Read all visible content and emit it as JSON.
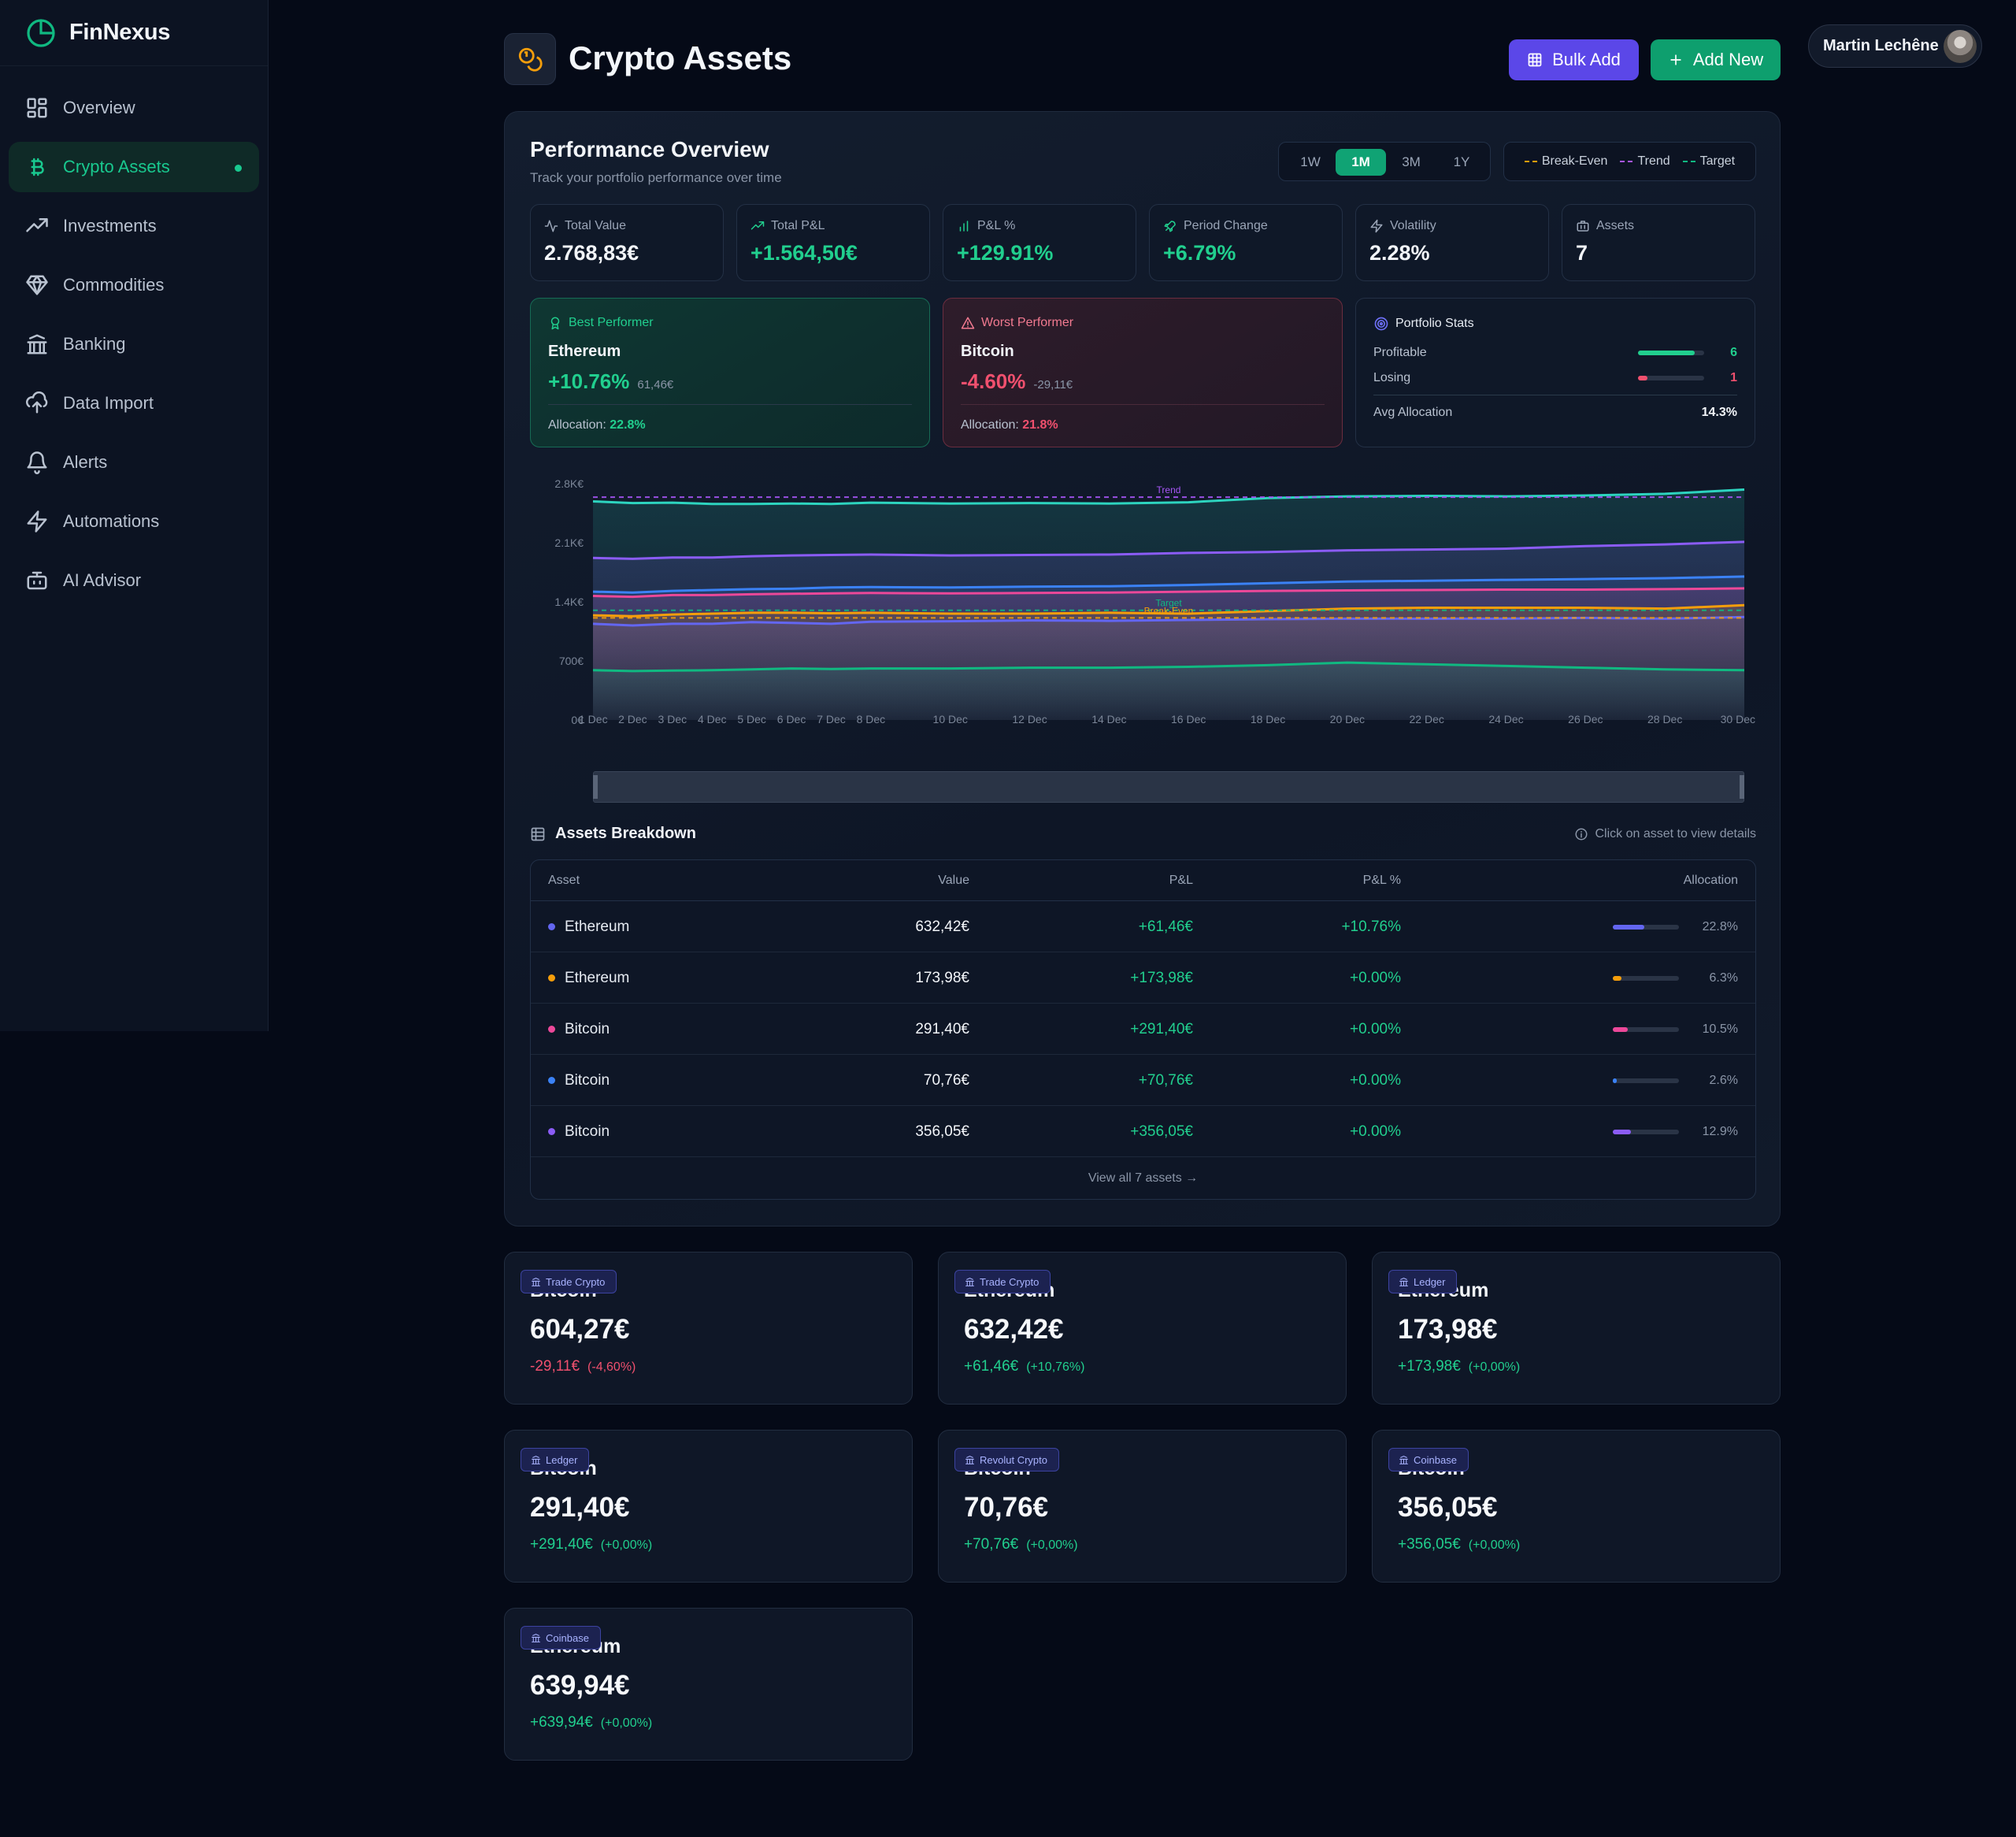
{
  "app": {
    "name": "FinNexus"
  },
  "sidebar": {
    "items": [
      {
        "label": "Overview",
        "icon": "layout-grid-icon"
      },
      {
        "label": "Crypto Assets",
        "icon": "bitcoin-icon",
        "active": true
      },
      {
        "label": "Investments",
        "icon": "trending-up-icon"
      },
      {
        "label": "Commodities",
        "icon": "gem-icon"
      },
      {
        "label": "Banking",
        "icon": "bank-icon"
      },
      {
        "label": "Data Import",
        "icon": "cloud-upload-icon"
      },
      {
        "label": "Alerts",
        "icon": "bell-icon"
      },
      {
        "label": "Automations",
        "icon": "zap-icon"
      },
      {
        "label": "AI Advisor",
        "icon": "bot-icon"
      }
    ]
  },
  "header": {
    "title": "Crypto Assets",
    "bulk_add_label": "Bulk Add",
    "add_new_label": "Add New",
    "user_name": "Martin Lechêne"
  },
  "colors": {
    "accent": "#10b981",
    "primary": "#5b47e8",
    "positive": "#21cf8e",
    "negative": "#f0506e"
  },
  "performance": {
    "title": "Performance Overview",
    "subtitle": "Track your portfolio performance over time",
    "ranges": [
      "1W",
      "1M",
      "3M",
      "1Y"
    ],
    "selected_range": "1M",
    "legend": [
      {
        "label": "Break-Even",
        "color": "#f59e0b"
      },
      {
        "label": "Trend",
        "color": "#a855f7"
      },
      {
        "label": "Target",
        "color": "#10b981"
      }
    ],
    "stats": [
      {
        "label": "Total Value",
        "value": "2.768,83€",
        "icon": "activity-icon"
      },
      {
        "label": "Total P&L",
        "value": "+1.564,50€",
        "icon": "trending-up-icon"
      },
      {
        "label": "P&L %",
        "value": "+129.91%",
        "icon": "bar-chart-icon"
      },
      {
        "label": "Period Change",
        "value": "+6.79%",
        "icon": "rocket-icon"
      },
      {
        "label": "Volatility",
        "value": "2.28%",
        "icon": "zap-icon"
      },
      {
        "label": "Assets",
        "value": "7",
        "icon": "briefcase-icon"
      }
    ],
    "best": {
      "label": "Best Performer",
      "asset": "Ethereum",
      "pct": "+10.76%",
      "abs": "61,46€",
      "alloc_label": "Allocation:",
      "alloc": "22.8%"
    },
    "worst": {
      "label": "Worst Performer",
      "asset": "Bitcoin",
      "pct": "-4.60%",
      "abs": "-29,11€",
      "alloc_label": "Allocation:",
      "alloc": "21.8%"
    },
    "portfolio_stats": {
      "label": "Portfolio Stats",
      "profitable_label": "Profitable",
      "profitable": "6",
      "profitable_fraction": 0.86,
      "losing_label": "Losing",
      "losing": "1",
      "losing_fraction": 0.14,
      "avg_alloc_label": "Avg Allocation",
      "avg_alloc": "14.3%"
    }
  },
  "chart_data": {
    "type": "area",
    "x": [
      "1 Dec",
      "2 Dec",
      "3 Dec",
      "4 Dec",
      "5 Dec",
      "6 Dec",
      "7 Dec",
      "8 Dec",
      "10 Dec",
      "12 Dec",
      "14 Dec",
      "16 Dec",
      "18 Dec",
      "20 Dec",
      "22 Dec",
      "24 Dec",
      "26 Dec",
      "28 Dec",
      "30 Dec"
    ],
    "x_days": [
      1,
      2,
      3,
      4,
      5,
      6,
      7,
      8,
      10,
      12,
      14,
      16,
      18,
      20,
      22,
      24,
      26,
      28,
      30
    ],
    "y_ticks": [
      "0€",
      "700€",
      "1.4K€",
      "2.1K€",
      "2.8K€"
    ],
    "ylim": [
      0,
      2800
    ],
    "series": [
      {
        "color": "#2dd4bf",
        "values": [
          2590,
          2570,
          2575,
          2560,
          2560,
          2565,
          2560,
          2575,
          2565,
          2570,
          2565,
          2580,
          2630,
          2650,
          2655,
          2650,
          2660,
          2680,
          2730
        ]
      },
      {
        "color": "#8b5cf6",
        "values": [
          1920,
          1910,
          1925,
          1925,
          1940,
          1950,
          1955,
          1960,
          1950,
          1955,
          1960,
          1980,
          1990,
          2010,
          2020,
          2030,
          2060,
          2080,
          2110
        ]
      },
      {
        "color": "#3b82f6",
        "values": [
          1520,
          1510,
          1530,
          1540,
          1550,
          1555,
          1570,
          1575,
          1570,
          1580,
          1585,
          1600,
          1620,
          1640,
          1650,
          1660,
          1670,
          1680,
          1700
        ]
      },
      {
        "color": "#ec4899",
        "values": [
          1470,
          1460,
          1480,
          1480,
          1490,
          1495,
          1500,
          1505,
          1500,
          1505,
          1510,
          1520,
          1530,
          1535,
          1540,
          1545,
          1545,
          1550,
          1560
        ]
      },
      {
        "color": "#f59e0b",
        "values": [
          1240,
          1230,
          1250,
          1260,
          1270,
          1270,
          1265,
          1270,
          1260,
          1260,
          1270,
          1260,
          1290,
          1320,
          1330,
          1330,
          1330,
          1320,
          1360
        ]
      },
      {
        "color": "#6366f1",
        "values": [
          1140,
          1120,
          1140,
          1140,
          1160,
          1150,
          1140,
          1165,
          1170,
          1180,
          1175,
          1185,
          1195,
          1200,
          1200,
          1200,
          1210,
          1200,
          1220
        ]
      },
      {
        "color": "#10b981",
        "values": [
          590,
          580,
          585,
          590,
          600,
          610,
          605,
          610,
          610,
          620,
          620,
          630,
          650,
          680,
          660,
          640,
          620,
          600,
          590
        ]
      }
    ],
    "reference_lines": [
      {
        "label": "Trend",
        "value": 2640,
        "color": "#a855f7"
      },
      {
        "label": "Target",
        "value": 1300,
        "color": "#10b981"
      },
      {
        "label": "Break-Even",
        "value": 1210,
        "color": "#f59e0b"
      }
    ]
  },
  "assets_breakdown": {
    "title": "Assets Breakdown",
    "hint": "Click on asset to view details",
    "columns": [
      "Asset",
      "Value",
      "P&L",
      "P&L %",
      "Allocation"
    ],
    "rows": [
      {
        "asset": "Ethereum",
        "value": "632,42€",
        "pl": "+61,46€",
        "plp": "+10.76%",
        "alloc": "22.8%",
        "alloc_fraction": 0.228,
        "color": "#6366f1"
      },
      {
        "asset": "Ethereum",
        "value": "173,98€",
        "pl": "+173,98€",
        "plp": "+0.00%",
        "alloc": "6.3%",
        "alloc_fraction": 0.063,
        "color": "#f59e0b"
      },
      {
        "asset": "Bitcoin",
        "value": "291,40€",
        "pl": "+291,40€",
        "plp": "+0.00%",
        "alloc": "10.5%",
        "alloc_fraction": 0.105,
        "color": "#ec4899"
      },
      {
        "asset": "Bitcoin",
        "value": "70,76€",
        "pl": "+70,76€",
        "plp": "+0.00%",
        "alloc": "2.6%",
        "alloc_fraction": 0.026,
        "color": "#3b82f6"
      },
      {
        "asset": "Bitcoin",
        "value": "356,05€",
        "pl": "+356,05€",
        "plp": "+0.00%",
        "alloc": "12.9%",
        "alloc_fraction": 0.129,
        "color": "#8b5cf6"
      }
    ],
    "view_all": "View all 7 assets →"
  },
  "asset_cards": [
    {
      "source": "Trade Crypto",
      "name": "Bitcoin",
      "value": "604,27€",
      "change": "-29,11€",
      "change_pct": "(-4,60%)",
      "negative": true
    },
    {
      "source": "Trade Crypto",
      "name": "Ethereum",
      "value": "632,42€",
      "change": "+61,46€",
      "change_pct": "(+10,76%)",
      "negative": false
    },
    {
      "source": "Ledger",
      "name": "Ethereum",
      "value": "173,98€",
      "change": "+173,98€",
      "change_pct": "(+0,00%)",
      "negative": false
    },
    {
      "source": "Ledger",
      "name": "Bitcoin",
      "value": "291,40€",
      "change": "+291,40€",
      "change_pct": "(+0,00%)",
      "negative": false
    },
    {
      "source": "Revolut Crypto",
      "name": "Bitcoin",
      "value": "70,76€",
      "change": "+70,76€",
      "change_pct": "(+0,00%)",
      "negative": false
    },
    {
      "source": "Coinbase",
      "name": "Bitcoin",
      "value": "356,05€",
      "change": "+356,05€",
      "change_pct": "(+0,00%)",
      "negative": false
    },
    {
      "source": "Coinbase",
      "name": "Ethereum",
      "value": "639,94€",
      "change": "+639,94€",
      "change_pct": "(+0,00%)",
      "negative": false
    }
  ]
}
